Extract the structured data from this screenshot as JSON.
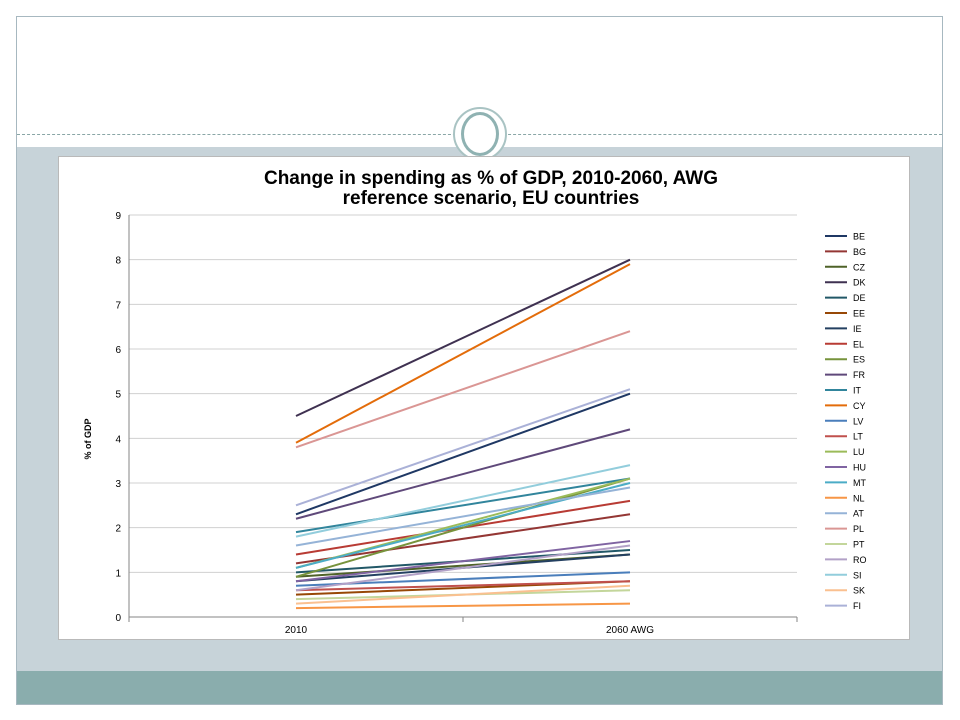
{
  "chart_data": {
    "type": "line",
    "title_line1": "Change in spending as % of GDP, 2010-2060, AWG",
    "title_line2": "reference scenario, EU countries",
    "ylabel": "% of GDP",
    "xlabel": "",
    "categories": [
      "2010",
      "2060 AWG"
    ],
    "ylim": [
      0,
      9
    ],
    "yticks": [
      "0",
      "1",
      "2",
      "3",
      "4",
      "5",
      "6",
      "7",
      "8",
      "9"
    ],
    "grid": "horizontal",
    "legend_position": "right",
    "series": [
      {
        "name": "BE",
        "color": "#1f3864",
        "values": [
          2.3,
          5.0
        ]
      },
      {
        "name": "BG",
        "color": "#943634",
        "values": [
          1.2,
          2.3
        ]
      },
      {
        "name": "CZ",
        "color": "#4f6228",
        "values": [
          0.9,
          1.4
        ]
      },
      {
        "name": "DK",
        "color": "#3f3151",
        "values": [
          4.5,
          8.0
        ]
      },
      {
        "name": "DE",
        "color": "#215867",
        "values": [
          1.0,
          1.5
        ]
      },
      {
        "name": "EE",
        "color": "#974806",
        "values": [
          0.5,
          0.8
        ]
      },
      {
        "name": "IE",
        "color": "#244061",
        "values": [
          0.8,
          1.4
        ]
      },
      {
        "name": "EL",
        "color": "#b83b34",
        "values": [
          1.4,
          2.6
        ]
      },
      {
        "name": "ES",
        "color": "#77933c",
        "values": [
          0.9,
          3.1
        ]
      },
      {
        "name": "FR",
        "color": "#5f497a",
        "values": [
          2.2,
          4.2
        ]
      },
      {
        "name": "IT",
        "color": "#31859c",
        "values": [
          1.9,
          3.1
        ]
      },
      {
        "name": "CY",
        "color": "#e36c0a",
        "values": [
          3.9,
          7.9
        ]
      },
      {
        "name": "LV",
        "color": "#4a7ebb",
        "values": [
          0.7,
          1.0
        ]
      },
      {
        "name": "LT",
        "color": "#c0504d",
        "values": [
          0.6,
          0.8
        ]
      },
      {
        "name": "LU",
        "color": "#9bbb59",
        "values": [
          1.1,
          3.1
        ]
      },
      {
        "name": "HU",
        "color": "#8064a2",
        "values": [
          0.8,
          1.7
        ]
      },
      {
        "name": "MT",
        "color": "#4bacc6",
        "values": [
          1.1,
          3.0
        ]
      },
      {
        "name": "NL",
        "color": "#f79646",
        "values": [
          0.2,
          0.3
        ]
      },
      {
        "name": "AT",
        "color": "#95b3d7",
        "values": [
          1.6,
          2.9
        ]
      },
      {
        "name": "PL",
        "color": "#da9694",
        "values": [
          3.8,
          6.4
        ]
      },
      {
        "name": "PT",
        "color": "#c3d69b",
        "values": [
          0.4,
          0.6
        ]
      },
      {
        "name": "RO",
        "color": "#b2a1c7",
        "values": [
          0.6,
          1.6
        ]
      },
      {
        "name": "SI",
        "color": "#92cddc",
        "values": [
          1.8,
          3.4
        ]
      },
      {
        "name": "SK",
        "color": "#fac090",
        "values": [
          0.3,
          0.7
        ]
      },
      {
        "name": "FI",
        "color": "#aab1d7",
        "values": [
          2.5,
          5.1
        ]
      }
    ]
  }
}
